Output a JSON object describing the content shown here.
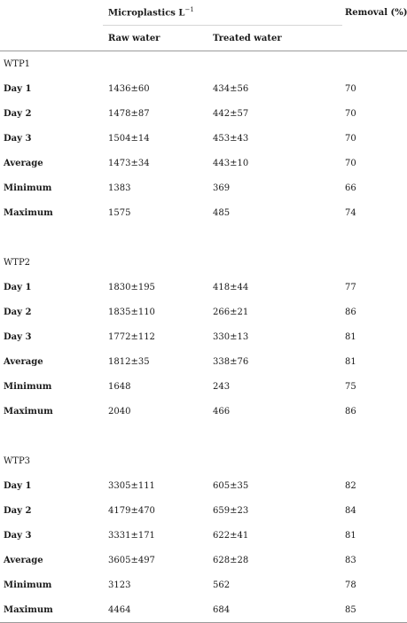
{
  "header": {
    "group_label": "Microplastics L",
    "group_label_sup": "−1",
    "removal_label": "Removal (%)",
    "raw_label": "Raw water",
    "treated_label": "Treated water"
  },
  "groups": [
    {
      "name": "WTP1",
      "rows": [
        {
          "label": "Day 1",
          "raw": "1436±60",
          "treated": "434±56",
          "removal": "70"
        },
        {
          "label": "Day 2",
          "raw": "1478±87",
          "treated": "442±57",
          "removal": "70"
        },
        {
          "label": "Day 3",
          "raw": "1504±14",
          "treated": "453±43",
          "removal": "70"
        },
        {
          "label": "Average",
          "raw": "1473±34",
          "treated": "443±10",
          "removal": "70"
        },
        {
          "label": "Minimum",
          "raw": "1383",
          "treated": "369",
          "removal": "66"
        },
        {
          "label": "Maximum",
          "raw": "1575",
          "treated": "485",
          "removal": "74"
        }
      ]
    },
    {
      "name": "WTP2",
      "rows": [
        {
          "label": "Day 1",
          "raw": "1830±195",
          "treated": "418±44",
          "removal": "77"
        },
        {
          "label": "Day 2",
          "raw": "1835±110",
          "treated": "266±21",
          "removal": "86"
        },
        {
          "label": "Day 3",
          "raw": "1772±112",
          "treated": "330±13",
          "removal": "81"
        },
        {
          "label": "Average",
          "raw": "1812±35",
          "treated": "338±76",
          "removal": "81"
        },
        {
          "label": "Minimum",
          "raw": "1648",
          "treated": "243",
          "removal": "75"
        },
        {
          "label": "Maximum",
          "raw": "2040",
          "treated": "466",
          "removal": "86"
        }
      ]
    },
    {
      "name": "WTP3",
      "rows": [
        {
          "label": "Day 1",
          "raw": "3305±111",
          "treated": "605±35",
          "removal": "82"
        },
        {
          "label": "Day 2",
          "raw": "4179±470",
          "treated": "659±23",
          "removal": "84"
        },
        {
          "label": "Day 3",
          "raw": "3331±171",
          "treated": "622±41",
          "removal": "81"
        },
        {
          "label": "Average",
          "raw": "3605±497",
          "treated": "628±28",
          "removal": "83"
        },
        {
          "label": "Minimum",
          "raw": "3123",
          "treated": "562",
          "removal": "78"
        },
        {
          "label": "Maximum",
          "raw": "4464",
          "treated": "684",
          "removal": "85"
        }
      ]
    }
  ]
}
